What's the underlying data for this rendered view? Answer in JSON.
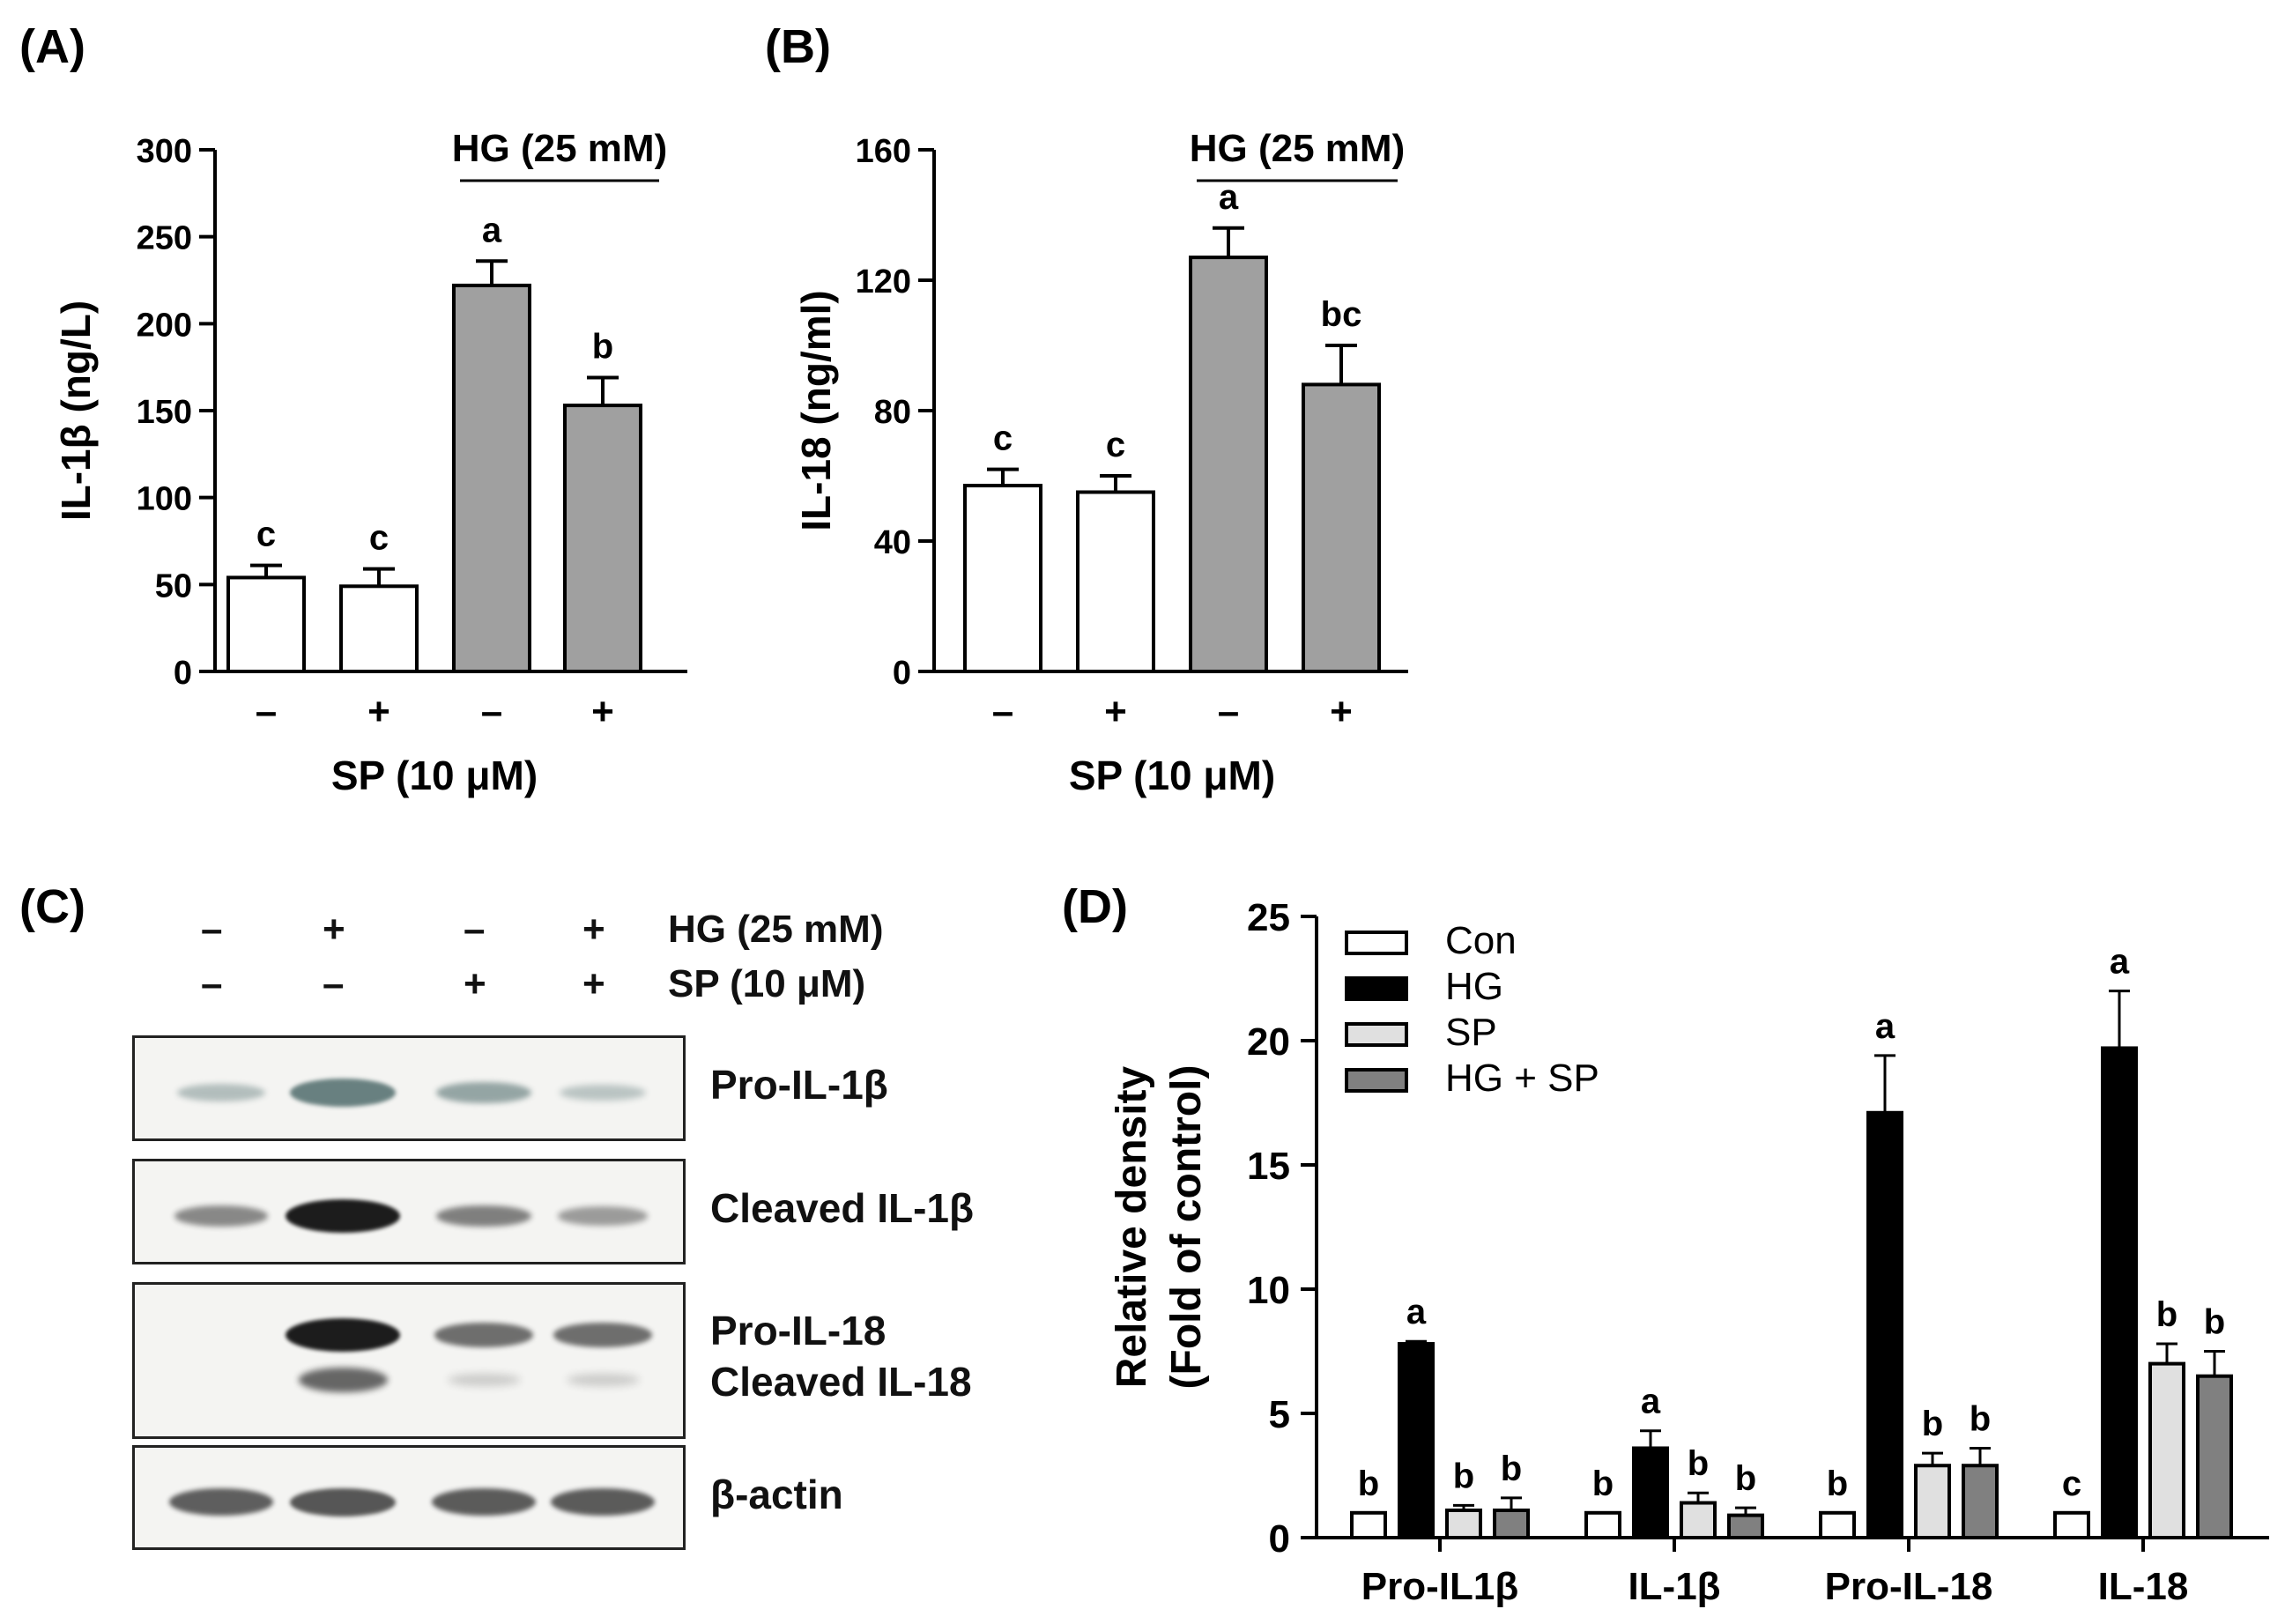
{
  "panels": {
    "A": {
      "letter": "(A)",
      "chart_data": {
        "type": "bar",
        "categories": [
          "–",
          "+",
          "–",
          "+"
        ],
        "values": [
          54,
          49,
          222,
          153
        ],
        "errors": [
          7,
          10,
          14,
          16
        ],
        "sig_letters": [
          "c",
          "c",
          "a",
          "b"
        ],
        "bar_colors": [
          "#ffffff",
          "#ffffff",
          "#a0a0a0",
          "#a0a0a0"
        ],
        "ylabel": "IL-1β (ng/L)",
        "xlabel": "SP (10 μM)",
        "group_label": "HG (25 mM)",
        "ylim": [
          0,
          300
        ],
        "yticks": [
          0,
          50,
          100,
          150,
          200,
          250,
          300
        ]
      }
    },
    "B": {
      "letter": "(B)",
      "chart_data": {
        "type": "bar",
        "categories": [
          "–",
          "+",
          "–",
          "+"
        ],
        "values": [
          57,
          55,
          127,
          88
        ],
        "errors": [
          5,
          5,
          9,
          12
        ],
        "sig_letters": [
          "c",
          "c",
          "a",
          "bc"
        ],
        "bar_colors": [
          "#ffffff",
          "#ffffff",
          "#a0a0a0",
          "#a0a0a0"
        ],
        "ylabel": "IL-18 (ng/ml)",
        "xlabel": "SP (10 μM)",
        "group_label": "HG (25 mM)",
        "ylim": [
          0,
          160
        ],
        "yticks": [
          0,
          40,
          80,
          120,
          160
        ]
      }
    },
    "C": {
      "letter": "(C)",
      "treatments": [
        {
          "label": "HG (25 mM)",
          "signs": [
            "–",
            "+",
            "–",
            "+"
          ]
        },
        {
          "label": "SP (10 μM)",
          "signs": [
            "–",
            "–",
            "+",
            "+"
          ]
        }
      ],
      "blots": [
        {
          "labels": [
            "Pro-IL-1β"
          ],
          "intensity": [
            0.25,
            0.75,
            0.45,
            0.2
          ],
          "color": "#3a5a5a"
        },
        {
          "labels": [
            "Cleaved IL-1β"
          ],
          "intensity": [
            0.4,
            1.0,
            0.45,
            0.3
          ],
          "color": "#111111"
        },
        {
          "labels": [
            "Pro-IL-18",
            "Cleaved IL-18"
          ],
          "intensity": [
            0.0,
            1.0,
            0.55,
            0.55
          ],
          "lower_intensity": [
            0.0,
            0.7,
            0.1,
            0.1
          ],
          "color": "#111111"
        },
        {
          "labels": [
            "β-actin"
          ],
          "intensity": [
            0.7,
            0.75,
            0.72,
            0.72
          ],
          "color": "#222222"
        }
      ]
    },
    "D": {
      "letter": "(D)",
      "chart_data": {
        "type": "bar",
        "categories": [
          "Pro-IL1β",
          "IL-1β",
          "Pro-IL-18",
          "IL-18"
        ],
        "series": [
          {
            "name": "Con",
            "color": "#ffffff",
            "values": [
              1.0,
              1.0,
              1.0,
              1.0
            ],
            "errors": [
              0,
              0,
              0,
              0
            ],
            "sig_letters": [
              "b",
              "b",
              "b",
              "c"
            ]
          },
          {
            "name": "HG",
            "color": "#000000",
            "values": [
              7.8,
              3.6,
              17.1,
              19.7
            ],
            "errors": [
              0.1,
              0.7,
              2.3,
              2.3
            ],
            "sig_letters": [
              "a",
              "a",
              "a",
              "a"
            ]
          },
          {
            "name": "SP",
            "color": "#e0e0e0",
            "values": [
              1.1,
              1.4,
              2.9,
              7.0
            ],
            "errors": [
              0.2,
              0.4,
              0.5,
              0.8
            ],
            "sig_letters": [
              "b",
              "b",
              "b",
              "b"
            ]
          },
          {
            "name": "HG + SP",
            "color": "#808080",
            "values": [
              1.1,
              0.9,
              2.9,
              6.5
            ],
            "errors": [
              0.5,
              0.3,
              0.7,
              1.0
            ],
            "sig_letters": [
              "b",
              "b",
              "b",
              "b"
            ]
          }
        ],
        "ylabel_line1": "Relative density",
        "ylabel_line2": "(Fold of control)",
        "ylim": [
          0,
          25
        ],
        "yticks": [
          0,
          5,
          10,
          15,
          20,
          25
        ],
        "legend_position": "top-left"
      }
    }
  }
}
